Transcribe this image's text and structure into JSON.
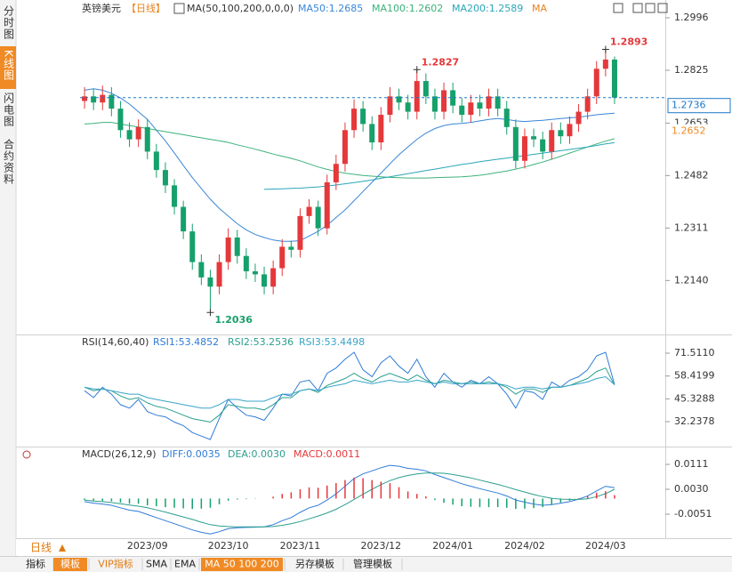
{
  "sidebar": {
    "tabs": [
      "分时图",
      "K线图",
      "闪电图",
      "合约资料"
    ]
  },
  "chart_data": [
    {
      "type": "candlestick",
      "title": "英镑美元",
      "subtitle": "【日线】",
      "indicator": "MA(50,100,200,0,0,0)",
      "indicator_tail": "MA",
      "categories": [
        null,
        null,
        null,
        null,
        null,
        null,
        null,
        "2023/09",
        null,
        null,
        null,
        null,
        null,
        null,
        null,
        null,
        "2023/10",
        null,
        null,
        null,
        null,
        null,
        null,
        null,
        "2023/11",
        null,
        null,
        null,
        null,
        null,
        null,
        null,
        null,
        "2023/12",
        null,
        null,
        null,
        null,
        null,
        null,
        null,
        "2024/01",
        null,
        null,
        null,
        null,
        null,
        null,
        null,
        "2024/02",
        null,
        null,
        null,
        null,
        null,
        null,
        null,
        null,
        "2024/03",
        null
      ],
      "open": [
        1.2725,
        1.274,
        1.272,
        1.2745,
        1.27,
        1.263,
        1.26,
        1.264,
        1.256,
        1.25,
        1.245,
        1.238,
        1.23,
        1.22,
        1.215,
        1.212,
        1.22,
        1.228,
        1.222,
        1.217,
        1.216,
        1.212,
        1.218,
        1.225,
        1.224,
        1.235,
        1.238,
        1.231,
        1.246,
        1.252,
        1.263,
        1.27,
        1.265,
        1.259,
        1.268,
        1.274,
        1.272,
        1.269,
        1.279,
        1.274,
        1.269,
        1.276,
        1.271,
        1.268,
        1.272,
        1.27,
        1.274,
        1.27,
        1.264,
        1.253,
        1.261,
        1.26,
        1.256,
        1.263,
        1.261,
        1.265,
        1.269,
        1.274,
        1.283,
        1.286
      ],
      "high": [
        1.277,
        1.2765,
        1.2775,
        1.277,
        1.2725,
        1.2655,
        1.2665,
        1.2665,
        1.2585,
        1.2525,
        1.247,
        1.24,
        1.2325,
        1.2225,
        1.2175,
        1.2225,
        1.231,
        1.2305,
        1.2245,
        1.2195,
        1.2185,
        1.2205,
        1.2275,
        1.227,
        1.2375,
        1.2405,
        1.24,
        1.2485,
        1.255,
        1.2655,
        1.273,
        1.2725,
        1.2675,
        1.2705,
        1.277,
        1.2765,
        1.2745,
        1.2827,
        1.2815,
        1.2765,
        1.2785,
        1.2785,
        1.2735,
        1.2745,
        1.2745,
        1.2765,
        1.2765,
        1.2725,
        1.2665,
        1.2635,
        1.2635,
        1.2625,
        1.2655,
        1.2655,
        1.2675,
        1.2715,
        1.2765,
        1.2855,
        1.2893,
        1.287
      ],
      "low": [
        1.27,
        1.2695,
        1.2695,
        1.2675,
        1.2605,
        1.2575,
        1.2575,
        1.2535,
        1.2475,
        1.2425,
        1.2355,
        1.2275,
        1.2175,
        1.2125,
        1.2036,
        1.2095,
        1.2175,
        1.2195,
        1.2145,
        1.2135,
        1.2095,
        1.2095,
        1.2155,
        1.2215,
        1.2215,
        1.2325,
        1.2285,
        1.229,
        1.2435,
        1.2495,
        1.2605,
        1.2625,
        1.2565,
        1.2565,
        1.2655,
        1.2695,
        1.2665,
        1.2665,
        1.2715,
        1.2665,
        1.2665,
        1.2685,
        1.2655,
        1.2655,
        1.2675,
        1.2675,
        1.2675,
        1.2615,
        1.2505,
        1.2505,
        1.2575,
        1.2535,
        1.2535,
        1.2585,
        1.2585,
        1.2625,
        1.2665,
        1.2715,
        1.2805,
        1.2715
      ],
      "close": [
        1.274,
        1.272,
        1.2745,
        1.27,
        1.263,
        1.26,
        1.264,
        1.256,
        1.25,
        1.245,
        1.238,
        1.23,
        1.22,
        1.215,
        1.212,
        1.22,
        1.228,
        1.222,
        1.217,
        1.216,
        1.212,
        1.218,
        1.225,
        1.224,
        1.235,
        1.238,
        1.231,
        1.246,
        1.252,
        1.263,
        1.27,
        1.265,
        1.259,
        1.268,
        1.274,
        1.272,
        1.269,
        1.279,
        1.274,
        1.269,
        1.276,
        1.271,
        1.268,
        1.272,
        1.27,
        1.274,
        1.27,
        1.264,
        1.253,
        1.261,
        1.26,
        1.256,
        1.263,
        1.261,
        1.265,
        1.269,
        1.274,
        1.283,
        1.286,
        1.2736
      ],
      "up_color": "#e5383b",
      "down_color": "#16a06b",
      "ylim": [
        1.1967,
        1.3054
      ],
      "yticks": [
        {
          "value": 1.2996,
          "label": "1.2996"
        },
        {
          "value": 1.2825,
          "label": "1.2825"
        },
        {
          "value": 1.2653,
          "label": "1.2653"
        },
        {
          "value": 1.2482,
          "label": "1.2482"
        },
        {
          "value": 1.2311,
          "label": "1.2311"
        },
        {
          "value": 1.214,
          "label": "1.2140"
        }
      ],
      "series": [
        {
          "name": "MA50:1.2685",
          "color": "#3a86d8",
          "values": [
            1.276,
            1.2765,
            1.276,
            1.275,
            1.2735,
            1.2715,
            1.269,
            1.2665,
            1.263,
            1.2595,
            1.2555,
            1.2515,
            1.2475,
            1.244,
            1.2405,
            1.2375,
            1.235,
            1.2325,
            1.2305,
            1.229,
            1.228,
            1.2272,
            1.2268,
            1.2268,
            1.227,
            1.2285,
            1.23,
            1.232,
            1.2345,
            1.237,
            1.24,
            1.243,
            1.246,
            1.249,
            1.252,
            1.255,
            1.2575,
            1.26,
            1.262,
            1.2635,
            1.2645,
            1.265,
            1.2652,
            1.2655,
            1.266,
            1.2665,
            1.2668,
            1.2665,
            1.266,
            1.2658,
            1.266,
            1.2662,
            1.2665,
            1.2668,
            1.267,
            1.2672,
            1.2676,
            1.268,
            1.2683,
            1.2685
          ]
        },
        {
          "name": "MA100:1.2602",
          "color": "#3db27a",
          "values": [
            1.265,
            1.2652,
            1.2655,
            1.2655,
            1.265,
            1.2645,
            1.264,
            1.2635,
            1.263,
            1.2625,
            1.262,
            1.2615,
            1.261,
            1.2605,
            1.26,
            1.2595,
            1.259,
            1.2582,
            1.2575,
            1.2568,
            1.256,
            1.2552,
            1.2545,
            1.2538,
            1.253,
            1.252,
            1.251,
            1.2502,
            1.2495,
            1.249,
            1.2486,
            1.2482,
            1.248,
            1.2478,
            1.2476,
            1.2475,
            1.2474,
            1.2474,
            1.2474,
            1.2475,
            1.2476,
            1.2477,
            1.2478,
            1.248,
            1.2483,
            1.2487,
            1.2492,
            1.2497,
            1.2503,
            1.251,
            1.2518,
            1.2526,
            1.2535,
            1.2545,
            1.2555,
            1.2565,
            1.2575,
            1.2585,
            1.2594,
            1.2602
          ]
        },
        {
          "name": "MA200:1.2589",
          "color": "#2aa7b8",
          "values": [
            null,
            null,
            null,
            null,
            null,
            null,
            null,
            null,
            null,
            null,
            null,
            null,
            null,
            null,
            null,
            null,
            null,
            null,
            null,
            null,
            1.2437,
            1.2438,
            1.2439,
            1.244,
            1.2441,
            1.2443,
            1.2445,
            1.2448,
            1.2451,
            1.2455,
            1.2459,
            1.2463,
            1.2468,
            1.2473,
            1.2478,
            1.2483,
            1.2488,
            1.2493,
            1.2498,
            1.2503,
            1.2508,
            1.2513,
            1.2518,
            1.2522,
            1.2527,
            1.2531,
            1.2535,
            1.2539,
            1.2543,
            1.2547,
            1.2551,
            1.2555,
            1.2559,
            1.2563,
            1.2567,
            1.2571,
            1.2575,
            1.258,
            1.2585,
            1.2589
          ]
        }
      ],
      "annotations": [
        {
          "text": "1.2893",
          "value": 1.2893,
          "color": "#e5383b"
        },
        {
          "text": "1.2827",
          "value": 1.2827,
          "color": "#e5383b"
        },
        {
          "text": "1.2036",
          "value": 1.2036,
          "color": "#16a06b"
        }
      ],
      "price_tags": [
        {
          "value": 1.2736,
          "label": "1.2736",
          "color": "#1f78c8",
          "dashed_line": true
        },
        {
          "value": 1.2652,
          "label": "1.2652",
          "color": "#ee8a23",
          "dashed_line": false
        }
      ]
    },
    {
      "type": "line",
      "title": "RSI(14,60,40)",
      "ylim": [
        19.0,
        81.2
      ],
      "yticks": [
        {
          "value": 71.511,
          "label": "71.5110"
        },
        {
          "value": 58.4199,
          "label": "58.4199"
        },
        {
          "value": 45.3288,
          "label": "45.3288"
        },
        {
          "value": 32.2378,
          "label": "32.2378"
        }
      ],
      "series": [
        {
          "name": "RSI1:53.4852",
          "color": "#2f7bd6",
          "values": [
            50,
            46,
            52,
            48,
            42,
            40,
            45,
            38,
            36,
            35,
            32,
            30,
            26,
            24,
            22,
            34,
            45,
            40,
            36,
            35,
            33,
            40,
            48,
            47,
            55,
            56,
            50,
            60,
            63,
            68,
            72,
            62,
            58,
            66,
            70,
            64,
            60,
            68,
            58,
            52,
            60,
            55,
            52,
            56,
            54,
            58,
            54,
            48,
            40,
            50,
            49,
            45,
            55,
            52,
            56,
            58,
            62,
            70,
            72,
            53.4852
          ]
        },
        {
          "name": "RSI2:53.2536",
          "color": "#2b9f8e",
          "values": [
            52,
            50,
            51,
            50,
            47,
            45,
            46,
            43,
            41,
            40,
            38,
            36,
            34,
            33,
            32,
            36,
            42,
            41,
            40,
            40,
            39,
            42,
            46,
            46,
            50,
            51,
            49,
            53,
            55,
            57,
            60,
            57,
            55,
            58,
            60,
            58,
            56,
            59,
            56,
            54,
            56,
            55,
            54,
            55,
            54,
            55,
            54,
            52,
            48,
            51,
            51,
            49,
            52,
            52,
            53,
            55,
            57,
            61,
            63,
            53.2536
          ]
        },
        {
          "name": "RSI3:53.4498",
          "color": "#38a4c8",
          "values": [
            52,
            51,
            51,
            50,
            49,
            48,
            48,
            46,
            45,
            44,
            43,
            42,
            41,
            40,
            40,
            42,
            45,
            45,
            44,
            44,
            44,
            46,
            48,
            48,
            50,
            51,
            50,
            52,
            53,
            54,
            56,
            55,
            54,
            55,
            56,
            55,
            55,
            56,
            55,
            54,
            55,
            54,
            54,
            54,
            54,
            54,
            54,
            53,
            51,
            52,
            52,
            51,
            52,
            52,
            53,
            54,
            55,
            57,
            58,
            53.4498
          ]
        }
      ]
    },
    {
      "type": "macd",
      "title": "MACD(26,12,9)",
      "ylim": [
        -0.0129,
        0.0166
      ],
      "yticks": [
        0.0111,
        {
          "value": 0.003,
          "label": "0.0030"
        },
        -0.0051
      ],
      "series": [
        {
          "name": "DIFF:0.0035",
          "color": "#2f7bd6",
          "values": [
            -0.001,
            -0.0015,
            -0.0018,
            -0.0022,
            -0.003,
            -0.0038,
            -0.0042,
            -0.0052,
            -0.0062,
            -0.0072,
            -0.0082,
            -0.0092,
            -0.0102,
            -0.011,
            -0.0115,
            -0.0108,
            -0.0098,
            -0.0095,
            -0.0094,
            -0.0093,
            -0.0092,
            -0.0085,
            -0.0072,
            -0.0062,
            -0.0045,
            -0.003,
            -0.0022,
            -0.0005,
            0.0015,
            0.004,
            0.0065,
            0.008,
            0.009,
            0.01,
            0.0108,
            0.0105,
            0.0098,
            0.0095,
            0.009,
            0.0078,
            0.0068,
            0.0058,
            0.0048,
            0.004,
            0.0032,
            0.0025,
            0.0018,
            0.0008,
            -0.0005,
            -0.0012,
            -0.0018,
            -0.0022,
            -0.002,
            -0.0015,
            -0.001,
            -0.0002,
            0.0008,
            0.0025,
            0.004,
            0.0035
          ]
        },
        {
          "name": "DEA:0.0030",
          "color": "#2b9f8e",
          "values": [
            -0.0005,
            -0.0008,
            -0.001,
            -0.0013,
            -0.0017,
            -0.0021,
            -0.0025,
            -0.003,
            -0.0037,
            -0.0044,
            -0.0052,
            -0.006,
            -0.0068,
            -0.0077,
            -0.0085,
            -0.0089,
            -0.0091,
            -0.0092,
            -0.0092,
            -0.0092,
            -0.0092,
            -0.0091,
            -0.0087,
            -0.0082,
            -0.0075,
            -0.0066,
            -0.0057,
            -0.0047,
            -0.0035,
            -0.002,
            -0.0003,
            0.0014,
            0.003,
            0.0045,
            0.0058,
            0.0068,
            0.0075,
            0.008,
            0.0083,
            0.0083,
            0.0082,
            0.0078,
            0.0073,
            0.0067,
            0.006,
            0.0053,
            0.0046,
            0.0038,
            0.0029,
            0.0021,
            0.0013,
            0.0006,
            0.0001,
            -0.0002,
            -0.0003,
            -0.0003,
            -0.0001,
            0.0006,
            0.0016,
            0.003
          ]
        },
        {
          "name": "MACD:0.0011",
          "color": "#e5383b",
          "down_color": "#16a06b",
          "style": "bar",
          "values": [
            -0.0005,
            -0.0007,
            -0.0008,
            -0.0009,
            -0.0013,
            -0.0017,
            -0.0017,
            -0.0022,
            -0.0025,
            -0.0028,
            -0.003,
            -0.0032,
            -0.0034,
            -0.0033,
            -0.003,
            -0.0019,
            -0.0007,
            -0.0003,
            -0.0002,
            -0.0001,
            0,
            0.0006,
            0.0015,
            0.002,
            0.003,
            0.0036,
            0.0035,
            0.0042,
            0.005,
            0.006,
            0.0068,
            0.0066,
            0.006,
            0.0055,
            0.005,
            0.0037,
            0.0023,
            0.0015,
            0.0007,
            -0.0005,
            -0.0014,
            -0.002,
            -0.0025,
            -0.0027,
            -0.0028,
            -0.0028,
            -0.0028,
            -0.003,
            -0.0034,
            -0.0033,
            -0.0031,
            -0.0028,
            -0.0021,
            -0.0013,
            -0.0007,
            0.0001,
            0.0009,
            0.0019,
            0.0024,
            0.0011
          ]
        }
      ]
    }
  ],
  "footer": {
    "period_button": "日线",
    "toolbar": [
      "指标",
      "模板",
      "VIP指标",
      "SMA",
      "EMA",
      "MA 50 100 200",
      "另存模板",
      "管理模板"
    ]
  }
}
